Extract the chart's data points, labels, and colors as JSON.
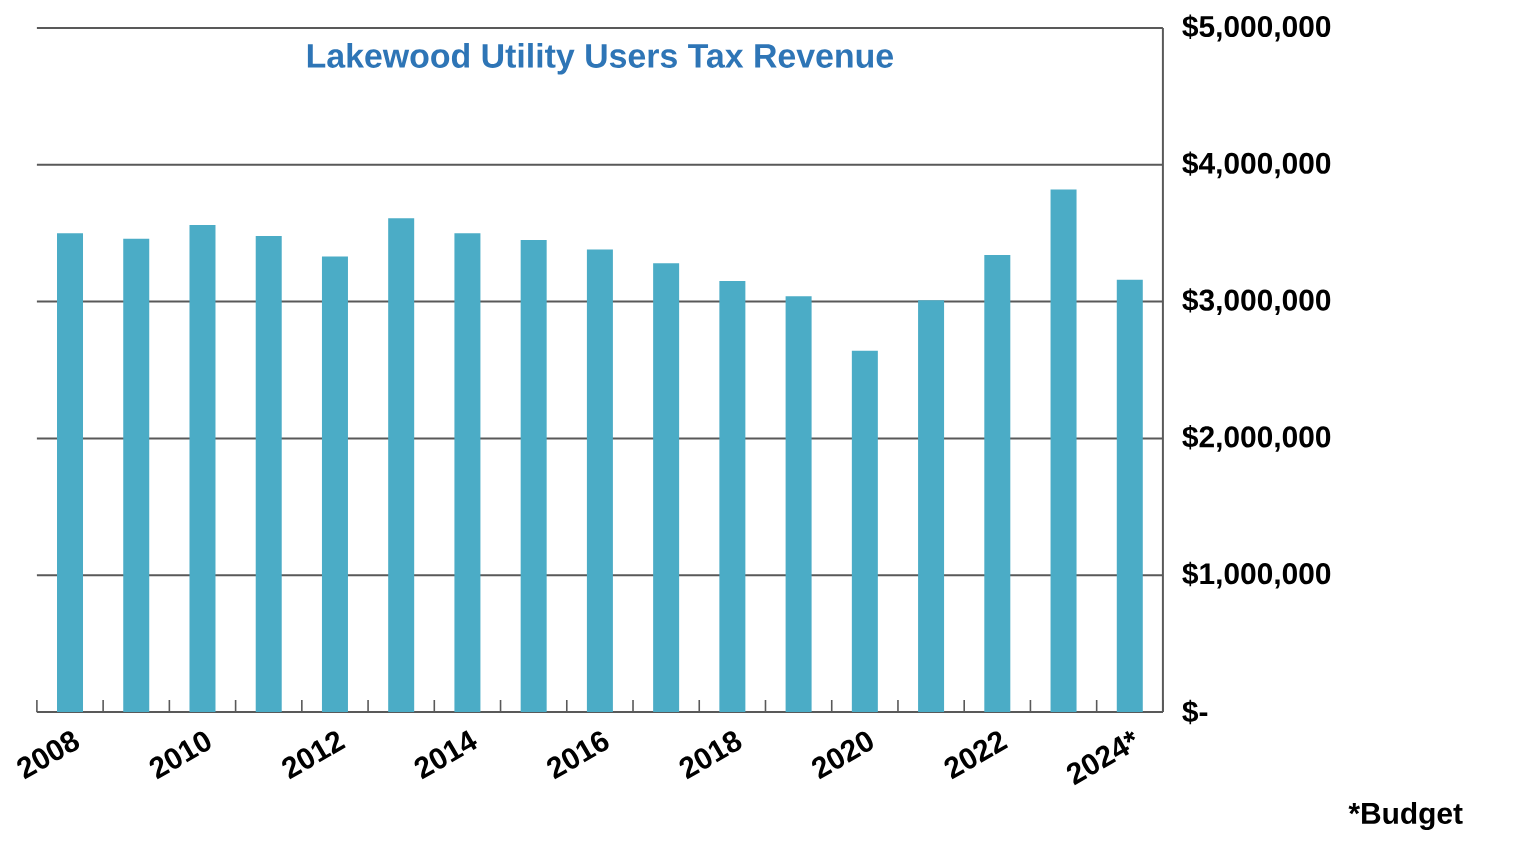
{
  "chart_data": {
    "type": "bar",
    "title": "Lakewood Utility Users Tax Revenue",
    "categories": [
      "2008",
      null,
      "2010",
      null,
      "2012",
      null,
      "2014",
      null,
      "2016",
      null,
      "2018",
      null,
      "2020",
      null,
      "2022",
      null,
      "2024*"
    ],
    "values": [
      3500000,
      3460000,
      3560000,
      3480000,
      3330000,
      3610000,
      3500000,
      3450000,
      3380000,
      3280000,
      3150000,
      3040000,
      2640000,
      3010000,
      3340000,
      3820000,
      3160000
    ],
    "color": "#4bacc6",
    "ylim": [
      0,
      5000000
    ],
    "yticks": [
      {
        "value": 0,
        "label": "$-"
      },
      {
        "value": 1000000,
        "label": "$1,000,000"
      },
      {
        "value": 2000000,
        "label": "$2,000,000"
      },
      {
        "value": 3000000,
        "label": "$3,000,000"
      },
      {
        "value": 4000000,
        "label": "$4,000,000"
      },
      {
        "value": 5000000,
        "label": "$5,000,000"
      }
    ],
    "grid": "y",
    "annotations": [
      "*Budget"
    ]
  }
}
